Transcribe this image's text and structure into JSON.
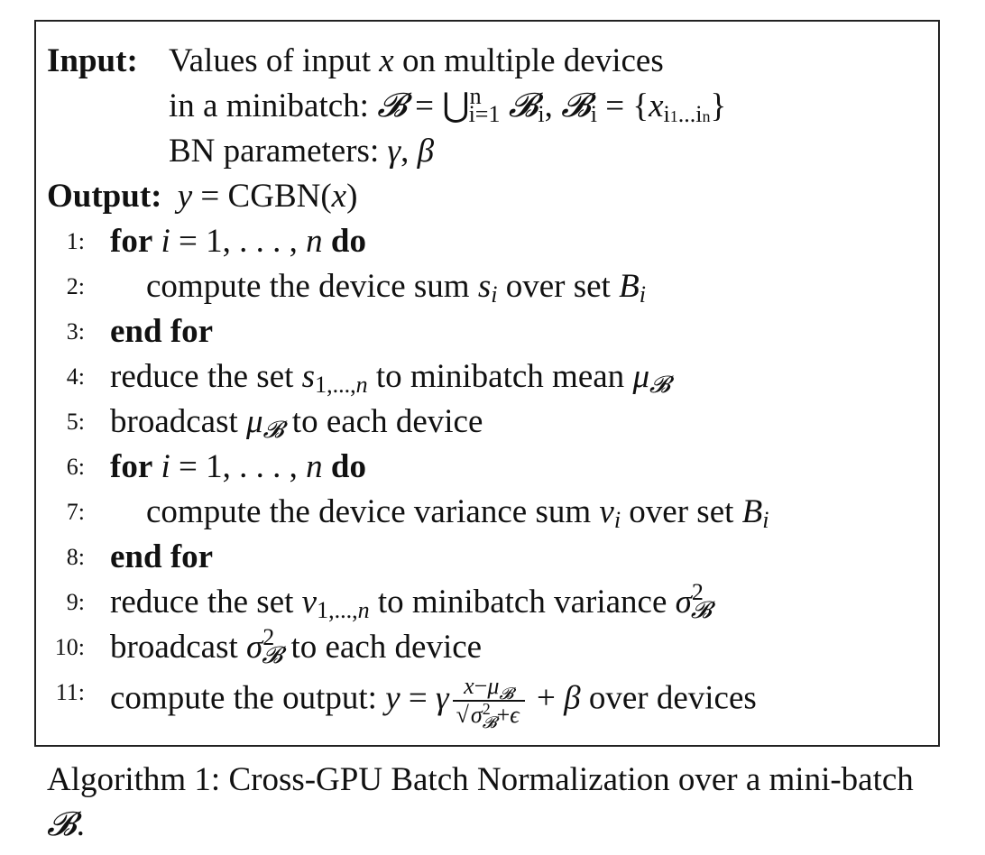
{
  "algorithm": {
    "input_label": "Input:",
    "input_line1": "Values of input x on multiple devices",
    "input_line2": "in a minibatch: 𝓑 = ⋃",
    "input_line2_sub": "i=1",
    "input_line2_sup": "n",
    "input_line2_rest": "𝓑i, 𝓑i = {x",
    "input_line2_xsub": "i1...in",
    "input_line2_close": "}",
    "input_line3": "BN parameters: γ, β",
    "output_label": "Output:",
    "output_expr": "y = CGBN(x)",
    "steps": [
      {
        "num": "1:",
        "text": "for i = 1, . . . , n do"
      },
      {
        "num": "2:",
        "text": "compute the device sum si over set Bi"
      },
      {
        "num": "3:",
        "text": "end for"
      },
      {
        "num": "4:",
        "text": "reduce the set s1,...,n to minibatch mean μ𝓑"
      },
      {
        "num": "5:",
        "text": "broadcast μ𝓑 to each device"
      },
      {
        "num": "6:",
        "text": "for i = 1, . . . , n do"
      },
      {
        "num": "7:",
        "text": "compute the device variance sum vi over set Bi"
      },
      {
        "num": "8:",
        "text": "end for"
      },
      {
        "num": "9:",
        "text": "reduce the set v1,...,n to minibatch variance σ²𝓑"
      },
      {
        "num": "10:",
        "text": "broadcast σ²𝓑 to each device"
      },
      {
        "num": "11:",
        "text": "compute the output: y = γ (x−μ𝓑)/√(σ²𝓑+ε) + β over devices"
      }
    ]
  },
  "caption": "Algorithm 1: Cross-GPU Batch Normalization over a mini-batch 𝓑."
}
